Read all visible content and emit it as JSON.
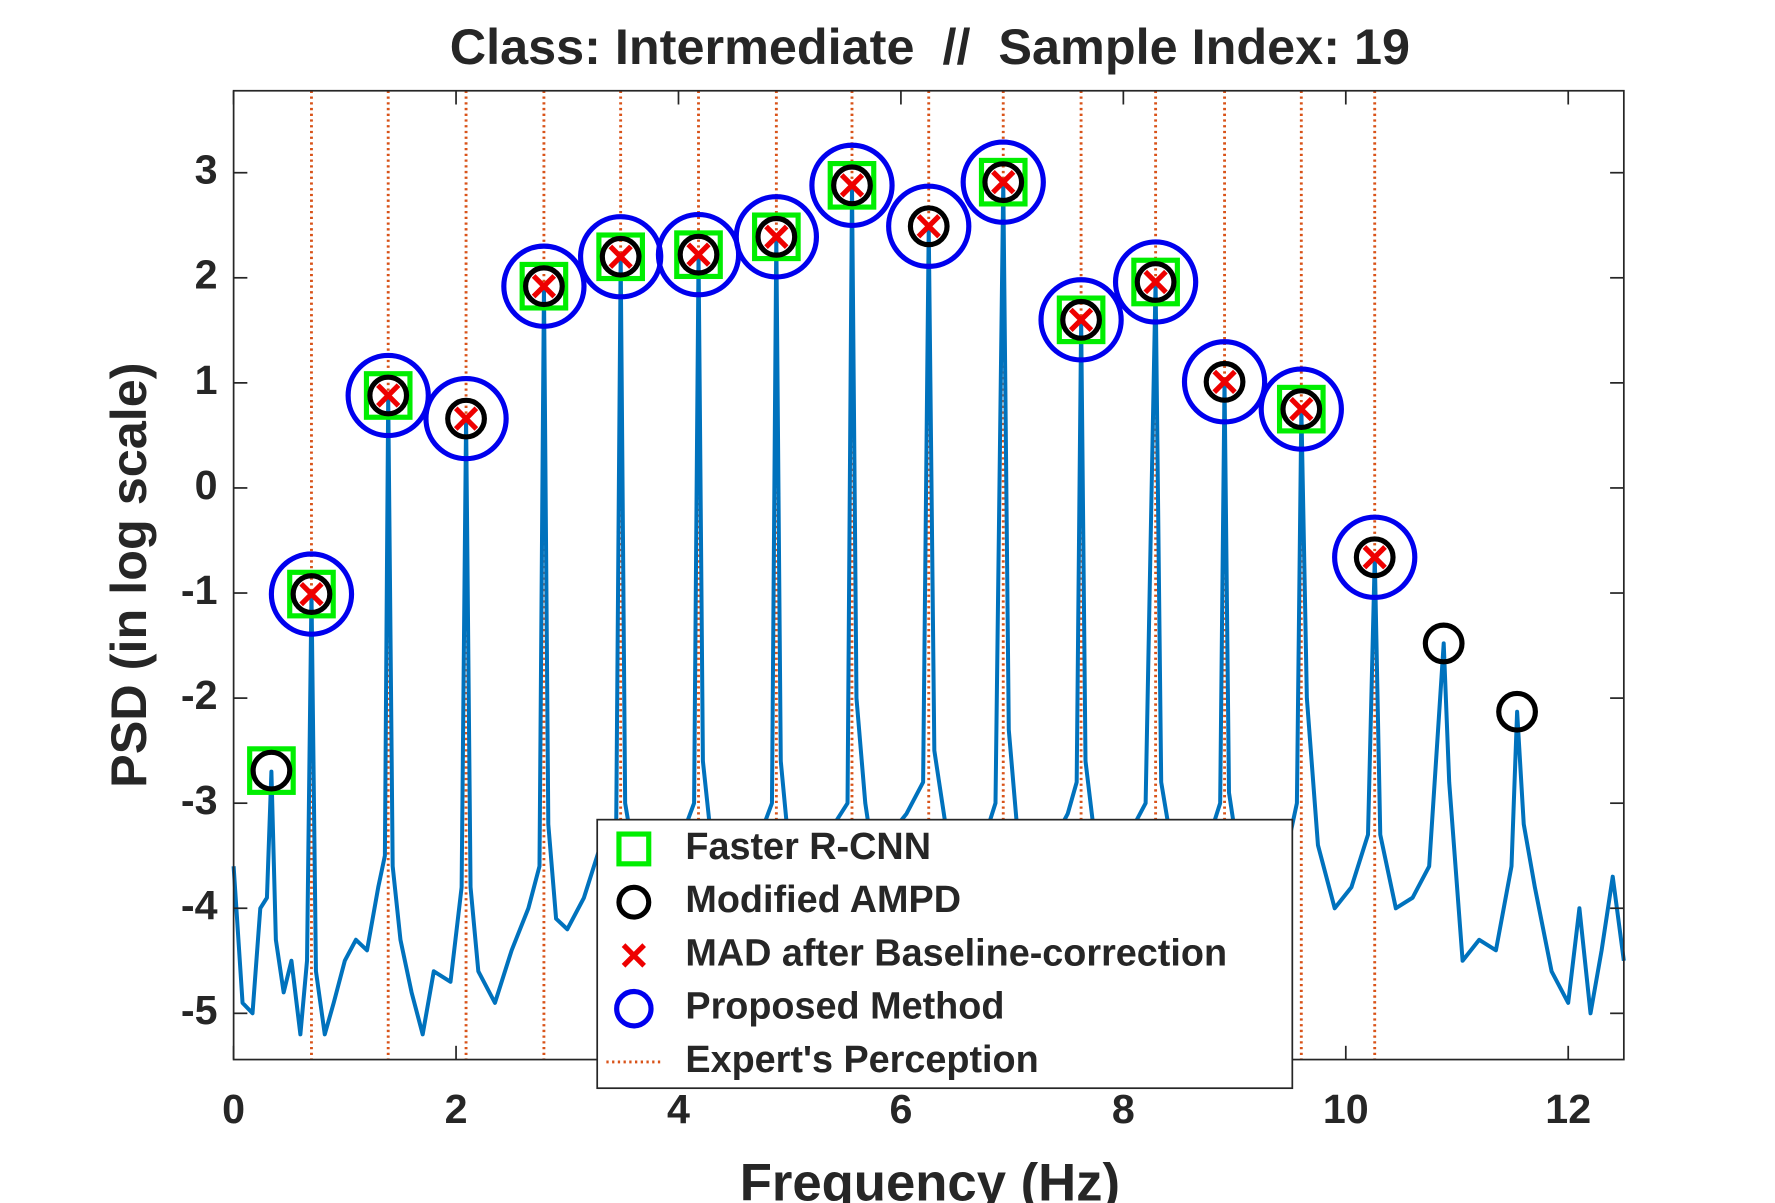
{
  "chart_data": {
    "type": "scatter",
    "title": "Class: Intermediate  //  Sample Index: 19",
    "x_label": "Frequency (Hz)",
    "y_label": "PSD (in log scale)",
    "xlim": [
      0,
      12.5
    ],
    "ylim": [
      -5.44,
      3.78
    ],
    "xticks": [
      0,
      2,
      4,
      6,
      8,
      10,
      12
    ],
    "yticks": [
      -5,
      -4,
      -3,
      -2,
      -1,
      0,
      1,
      2,
      3
    ],
    "grid": false,
    "legend_location": "south",
    "line": {
      "color": "#0072BD",
      "x": [
        0,
        0.08,
        0.17,
        0.24,
        0.3,
        0.34,
        0.38,
        0.45,
        0.52,
        0.6,
        0.66,
        0.7,
        0.74,
        0.82,
        0.9,
        1.0,
        1.1,
        1.2,
        1.3,
        1.36,
        1.39,
        1.43,
        1.5,
        1.6,
        1.7,
        1.8,
        1.95,
        2.05,
        2.09,
        2.13,
        2.2,
        2.35,
        2.5,
        2.65,
        2.75,
        2.79,
        2.83,
        2.9,
        3.0,
        3.15,
        3.3,
        3.44,
        3.48,
        3.52,
        3.6,
        3.7,
        3.85,
        4.0,
        4.14,
        4.18,
        4.22,
        4.3,
        4.4,
        4.55,
        4.7,
        4.84,
        4.88,
        4.92,
        5.0,
        5.1,
        5.25,
        5.4,
        5.52,
        5.56,
        5.6,
        5.68,
        5.75,
        5.9,
        6.05,
        6.2,
        6.25,
        6.3,
        6.4,
        6.55,
        6.7,
        6.85,
        6.92,
        6.97,
        7.05,
        7.2,
        7.35,
        7.5,
        7.58,
        7.62,
        7.66,
        7.75,
        7.9,
        8.05,
        8.2,
        8.29,
        8.34,
        8.45,
        8.6,
        8.75,
        8.87,
        8.91,
        8.95,
        9.05,
        9.2,
        9.35,
        9.5,
        9.56,
        9.6,
        9.65,
        9.75,
        9.9,
        10.05,
        10.2,
        10.26,
        10.31,
        10.45,
        10.6,
        10.75,
        10.88,
        10.93,
        11.05,
        11.2,
        11.35,
        11.49,
        11.54,
        11.6,
        11.7,
        11.85,
        12.0,
        12.1,
        12.2,
        12.3,
        12.4,
        12.5
      ],
      "values": [
        -3.6,
        -4.9,
        -5.0,
        -4.0,
        -3.9,
        -2.7,
        -4.3,
        -4.8,
        -4.5,
        -5.2,
        -4.5,
        -1.0,
        -4.6,
        -5.2,
        -4.9,
        -4.5,
        -4.3,
        -4.4,
        -3.8,
        -3.5,
        0.88,
        -3.6,
        -4.3,
        -4.8,
        -5.2,
        -4.6,
        -4.7,
        -3.8,
        0.66,
        -3.8,
        -4.6,
        -4.9,
        -4.4,
        -4.0,
        -3.6,
        1.92,
        -3.2,
        -4.1,
        -4.2,
        -3.9,
        -3.4,
        -3.2,
        2.2,
        -3.0,
        -3.5,
        -4.0,
        -3.7,
        -3.4,
        -3.0,
        2.22,
        -2.6,
        -3.4,
        -3.8,
        -3.5,
        -3.4,
        -3.0,
        2.39,
        -2.6,
        -3.5,
        -3.8,
        -3.4,
        -3.2,
        -3.0,
        2.88,
        -2.0,
        -3.0,
        -3.5,
        -3.3,
        -3.1,
        -2.8,
        2.48,
        -2.5,
        -3.2,
        -3.7,
        -3.5,
        -3.0,
        2.91,
        -2.3,
        -3.3,
        -3.6,
        -3.4,
        -3.1,
        -2.8,
        1.6,
        -2.6,
        -3.4,
        -3.7,
        -3.3,
        -3.0,
        1.96,
        -2.8,
        -3.5,
        -3.7,
        -3.4,
        -3.0,
        1.01,
        -2.9,
        -3.6,
        -3.9,
        -3.6,
        -3.3,
        -3.0,
        0.75,
        -2.0,
        -3.4,
        -4.0,
        -3.8,
        -3.3,
        -0.66,
        -3.3,
        -4.0,
        -3.9,
        -3.6,
        -1.48,
        -2.8,
        -4.5,
        -4.3,
        -4.4,
        -3.6,
        -2.13,
        -3.2,
        -3.8,
        -4.6,
        -4.9,
        -4.0,
        -5.0,
        -4.4,
        -3.7,
        -4.5
      ]
    },
    "series": [
      {
        "name": "Faster R-CNN",
        "color": "#00ee00",
        "marker": "square",
        "x": [
          0.34,
          0.7,
          1.39,
          2.79,
          3.48,
          4.18,
          4.88,
          5.56,
          6.92,
          7.62,
          8.29,
          9.6
        ],
        "values": [
          -2.69,
          -1.01,
          0.88,
          1.92,
          2.2,
          2.22,
          2.39,
          2.88,
          2.91,
          1.6,
          1.96,
          0.75
        ]
      },
      {
        "name": "Proposed Method",
        "color": "#0000ee",
        "marker": "big-circle",
        "x": [
          0.7,
          1.39,
          2.09,
          2.79,
          3.48,
          4.18,
          4.88,
          5.56,
          6.25,
          6.92,
          7.62,
          8.29,
          8.91,
          9.6,
          10.26
        ],
        "values": [
          -1.01,
          0.88,
          0.66,
          1.92,
          2.2,
          2.22,
          2.39,
          2.88,
          2.49,
          2.91,
          1.6,
          1.96,
          1.01,
          0.75,
          -0.66
        ]
      },
      {
        "name": "Modified AMPD",
        "color": "#000000",
        "marker": "circle",
        "x": [
          0.34,
          0.7,
          1.39,
          2.09,
          2.79,
          3.48,
          4.18,
          4.88,
          5.56,
          6.25,
          6.92,
          7.62,
          8.29,
          8.91,
          9.6,
          10.26,
          10.88,
          11.54
        ],
        "values": [
          -2.69,
          -1.01,
          0.88,
          0.66,
          1.92,
          2.2,
          2.22,
          2.39,
          2.88,
          2.49,
          2.91,
          1.6,
          1.96,
          1.01,
          0.75,
          -0.66,
          -1.48,
          -2.13
        ]
      },
      {
        "name": "MAD after Baseline-correction",
        "color": "#ee0000",
        "marker": "x",
        "x": [
          0.7,
          1.39,
          2.09,
          2.79,
          3.48,
          4.18,
          4.88,
          5.56,
          6.25,
          6.92,
          7.62,
          8.29,
          8.91,
          9.6,
          10.26
        ],
        "values": [
          -1.01,
          0.88,
          0.66,
          1.92,
          2.2,
          2.22,
          2.39,
          2.88,
          2.49,
          2.91,
          1.6,
          1.96,
          1.01,
          0.75,
          -0.66
        ]
      }
    ],
    "expert": {
      "name": "Expert's Perception",
      "color": "#D95319",
      "x": [
        0.7,
        1.39,
        2.09,
        2.79,
        3.48,
        4.18,
        4.88,
        5.56,
        6.25,
        6.92,
        7.62,
        8.29,
        8.91,
        9.6,
        10.26
      ]
    },
    "legend_order": [
      "Faster R-CNN",
      "Modified AMPD",
      "MAD after Baseline-correction",
      "Proposed Method",
      "Expert's Perception"
    ]
  }
}
